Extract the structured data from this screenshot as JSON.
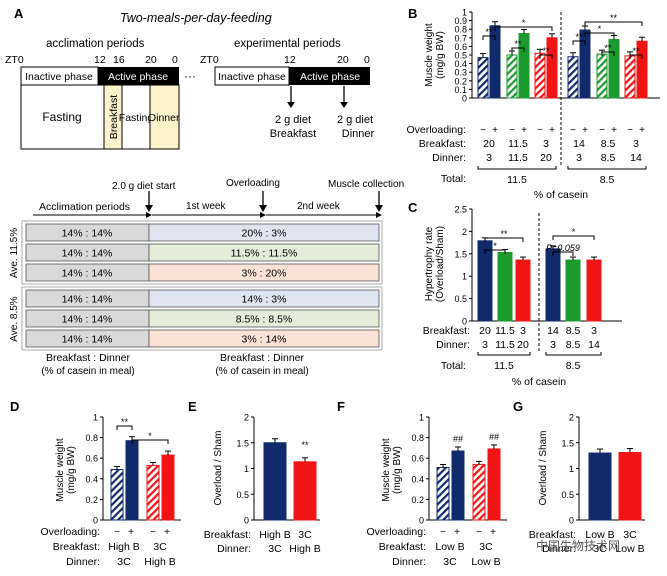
{
  "panels": {
    "A": "A",
    "B": "B",
    "C": "C",
    "D": "D",
    "E": "E",
    "F": "F",
    "G": "G"
  },
  "panelA": {
    "title": "Two-meals-per-day-feeding",
    "acclimation_label": "acclimation periods",
    "experimental_label": "experimental periods",
    "zt0": "ZT0",
    "ticks_left": [
      "12",
      "16",
      "20",
      "0"
    ],
    "ticks_right": [
      "12",
      "20",
      "0"
    ],
    "inactive": "Inactive phase",
    "active": "Active phase",
    "ellipsis": "···",
    "fasting": "Fasting",
    "breakfast": "Breakfast",
    "fasting2": "Fasting",
    "dinner": "Dinner",
    "diet1": "2 g diet",
    "diet1_sub": "Breakfast",
    "diet2": "2 g diet",
    "diet2_sub": "Dinner",
    "timeline": {
      "diet_start": "2.0 g diet start",
      "overloading": "Overloading",
      "muscle_collection": "Muscle collection",
      "acclimation": "Acclimation periods",
      "week1": "1st week",
      "week2": "2nd week",
      "group1": "Ave. 11.5%",
      "group2": "Ave. 8.5%",
      "rows": [
        {
          "acc": "14% : 14%",
          "exp": "20% : 3%",
          "color": "#dfe4f1"
        },
        {
          "acc": "14% : 14%",
          "exp": "11.5% : 11.5%",
          "color": "#e3edd9"
        },
        {
          "acc": "14% : 14%",
          "exp": "3% : 20%",
          "color": "#fbe2d6"
        },
        {
          "acc": "14% : 14%",
          "exp": "14% : 3%",
          "color": "#dfe4f1"
        },
        {
          "acc": "14% : 14%",
          "exp": "8.5% : 8.5%",
          "color": "#e3edd9"
        },
        {
          "acc": "14% : 14%",
          "exp": "3% : 14%",
          "color": "#fbe2d6"
        }
      ],
      "footer_left": "Breakfast : Dinner",
      "footer_left_sub": "(% of casein in meal)",
      "footer_right": "Breakfast : Dinner",
      "footer_right_sub": "(% of casein in meal)"
    }
  },
  "colors": {
    "navy": "#102a6b",
    "green": "#1b9a2e",
    "red": "#f01414",
    "acc_gray": "#d9d9d9"
  },
  "chart_data": [
    {
      "panel": "B",
      "type": "bar",
      "ylabel": "Muscle weight (mg/g BW)",
      "ylim": [
        0,
        1.0
      ],
      "yticks": [
        "0",
        "0.1",
        "0.2",
        "0.3",
        "0.4",
        "0.5",
        "0.6",
        "0.7",
        "0.8",
        "0.9",
        "1"
      ],
      "overloading_label": "Overloading:",
      "breakfast_label": "Breakfast:",
      "dinner_label": "Dinner:",
      "total_label": "Total:",
      "xlabel": "% of casein",
      "groups": [
        {
          "breakfast": "20",
          "dinner": "3",
          "color": "navy",
          "sham": 0.47,
          "overload": 0.84
        },
        {
          "breakfast": "11.5",
          "dinner": "11.5",
          "color": "green",
          "sham": 0.5,
          "overload": 0.75
        },
        {
          "breakfast": "3",
          "dinner": "20",
          "color": "red",
          "sham": 0.52,
          "overload": 0.7
        },
        {
          "breakfast": "14",
          "dinner": "3",
          "color": "navy",
          "sham": 0.48,
          "overload": 0.79
        },
        {
          "breakfast": "8.5",
          "dinner": "8.5",
          "color": "green",
          "sham": 0.51,
          "overload": 0.68
        },
        {
          "breakfast": "3",
          "dinner": "14",
          "color": "red",
          "sham": 0.49,
          "overload": 0.66
        }
      ],
      "totals": [
        "11.5",
        "8.5"
      ]
    },
    {
      "panel": "C",
      "type": "bar",
      "ylabel": "Hypertrophy rate (Overload/Sham)",
      "ylim": [
        0,
        2.5
      ],
      "yticks": [
        "0",
        "0.5",
        "1",
        "1.5",
        "2",
        "2.5"
      ],
      "breakfast_label": "Breakfast:",
      "dinner_label": "Dinner:",
      "total_label": "Total:",
      "xlabel": "% of casein",
      "pvalue": "P=0.059",
      "bars": [
        {
          "breakfast": "20",
          "dinner": "3",
          "color": "navy",
          "value": 1.79
        },
        {
          "breakfast": "11.5",
          "dinner": "11.5",
          "color": "green",
          "value": 1.53
        },
        {
          "breakfast": "3",
          "dinner": "20",
          "color": "red",
          "value": 1.36
        },
        {
          "breakfast": "14",
          "dinner": "3",
          "color": "navy",
          "value": 1.61
        },
        {
          "breakfast": "8.5",
          "dinner": "8.5",
          "color": "green",
          "value": 1.36
        },
        {
          "breakfast": "3",
          "dinner": "14",
          "color": "red",
          "value": 1.36
        }
      ],
      "totals": [
        "11.5",
        "8.5"
      ]
    },
    {
      "panel": "D",
      "type": "bar",
      "ylabel": "Muscle weight (mg/g BW)",
      "ylim": [
        0,
        1.0
      ],
      "yticks": [
        "0",
        "0.2",
        "0.4",
        "0.6",
        "0.8",
        "1"
      ],
      "overloading_label": "Overloading:",
      "breakfast_label": "Breakfast:",
      "dinner_label": "Dinner:",
      "groups": [
        {
          "breakfast": "High B",
          "dinner": "3C",
          "color": "navy",
          "sham": 0.49,
          "overload": 0.77
        },
        {
          "breakfast": "3C",
          "dinner": "High B",
          "color": "red",
          "sham": 0.53,
          "overload": 0.63
        }
      ]
    },
    {
      "panel": "E",
      "type": "bar",
      "ylabel": "Overload / Sham",
      "ylim": [
        0,
        2.0
      ],
      "yticks": [
        "0",
        "0.5",
        "1",
        "1.5",
        "2"
      ],
      "breakfast_label": "Breakfast:",
      "dinner_label": "Dinner:",
      "bars": [
        {
          "breakfast": "High B",
          "dinner": "3C",
          "color": "navy",
          "value": 1.5
        },
        {
          "breakfast": "3C",
          "dinner": "High B",
          "color": "red",
          "value": 1.13
        }
      ]
    },
    {
      "panel": "F",
      "type": "bar",
      "ylabel": "Muscle weight (mg/g BW)",
      "ylim": [
        0,
        1.0
      ],
      "yticks": [
        "0",
        "0.2",
        "0.4",
        "0.6",
        "0.8",
        "1"
      ],
      "overloading_label": "Overloading:",
      "breakfast_label": "Breakfast:",
      "dinner_label": "Dinner:",
      "groups": [
        {
          "breakfast": "Low B",
          "dinner": "3C",
          "color": "navy",
          "sham": 0.51,
          "overload": 0.67
        },
        {
          "breakfast": "3C",
          "dinner": "Low B",
          "color": "red",
          "sham": 0.54,
          "overload": 0.69
        }
      ]
    },
    {
      "panel": "G",
      "type": "bar",
      "ylabel": "Overload / Sham",
      "ylim": [
        0,
        2.0
      ],
      "yticks": [
        "0",
        "0.5",
        "1",
        "1.5",
        "2"
      ],
      "breakfast_label": "Breakfast:",
      "dinner_label": "Dinner:",
      "bars": [
        {
          "breakfast": "Low B",
          "dinner": "3C",
          "color": "navy",
          "value": 1.3
        },
        {
          "breakfast": "3C",
          "dinner": "Low B",
          "color": "red",
          "value": 1.31
        }
      ]
    }
  ],
  "sig": {
    "two": "**",
    "one": "*",
    "hash": "##",
    "minus": "−",
    "plus": "+"
  },
  "watermark": "中国生物技术网"
}
